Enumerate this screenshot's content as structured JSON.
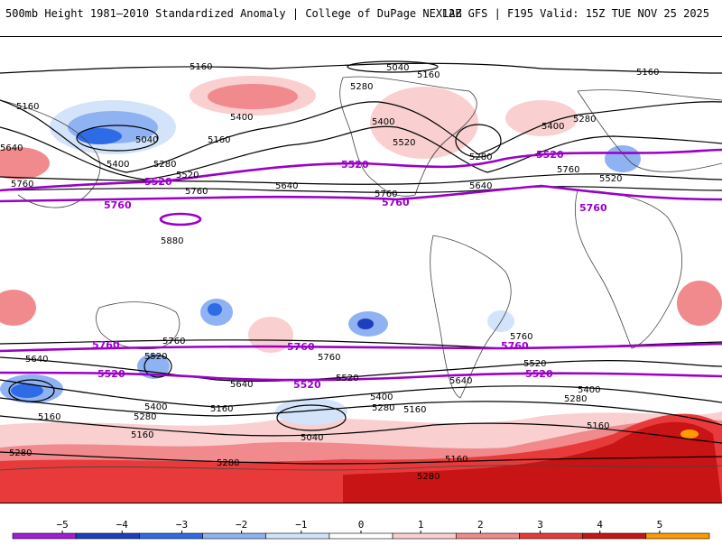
{
  "header": {
    "title_left": "500mb Height 1981–2010 Standardized Anomaly | College of DuPage NEXLAB",
    "title_right": "12Z GFS | F195 Valid: 15Z TUE NOV 25 2025"
  },
  "contour_labels": {
    "c5160_a": "5160",
    "c5160_b": "5160",
    "c5160_c": "5160",
    "c5160_d": "5160",
    "c5160_e": "5160",
    "c5160_f": "5160",
    "c5160_g": "5160",
    "c5160_h": "5160",
    "c5160_i": "5160",
    "c5160_j": "5160",
    "c5040_a": "5040",
    "c5040_b": "5040",
    "c5040_c": "5040",
    "c5280_a": "5280",
    "c5280_b": "5280",
    "c5280_c": "5280",
    "c5280_d": "5280",
    "c5280_e": "5280",
    "c5280_f": "5280",
    "c5280_g": "5280",
    "c5280_h": "5280",
    "c5280_i": "5280",
    "c5280_j": "5280",
    "c5400_a": "5400",
    "c5400_b": "5400",
    "c5400_c": "5400",
    "c5400_d": "5400",
    "c5400_e": "5400",
    "c5400_f": "5400",
    "c5400_g": "5400",
    "c5520_a": "5520",
    "c5520_b": "5520",
    "c5520_c": "5520",
    "c5520_d": "5520",
    "c5520_e": "5520",
    "c5520_f": "5520",
    "c5520_g": "5520",
    "c5640_a": "5640",
    "c5640_b": "5640",
    "c5640_c": "5640",
    "c5640_d": "5640",
    "c5640_e": "5640",
    "c5640_f": "5640",
    "c5760_a": "5760",
    "c5760_b": "5760",
    "c5760_c": "5760",
    "c5760_d": "5760",
    "c5760_e": "5760",
    "c5880_a": "5880"
  },
  "highlight_labels": {
    "p5520_a": "5520",
    "p5520_b": "5520",
    "p5520_c": "5520",
    "p5760_a": "5760",
    "p5760_b": "5760",
    "p5760_c": "5760",
    "p5760_d": "5760",
    "p5760_e": "5760",
    "p5760_f": "5760",
    "p5520_d": "5520",
    "p5520_e": "5520",
    "p5520_f": "5520"
  },
  "colorbar": {
    "ticks": [
      "−5",
      "−4",
      "−3",
      "−2",
      "−1",
      "0",
      "1",
      "2",
      "3",
      "4",
      "5"
    ],
    "colors": [
      "#9d1fd6",
      "#1c3fbf",
      "#2e6be6",
      "#8fb2f2",
      "#d3e3fa",
      "#ffffff",
      "#f9cfd0",
      "#f08a8d",
      "#e83a3a",
      "#c81414",
      "#ff9a00"
    ]
  },
  "colors": {
    "contour": "#000000",
    "highlight_contour": "#9a00c8",
    "positive_anomaly": "#f4a3a5",
    "negative_anomaly": "#7fa4ee"
  }
}
